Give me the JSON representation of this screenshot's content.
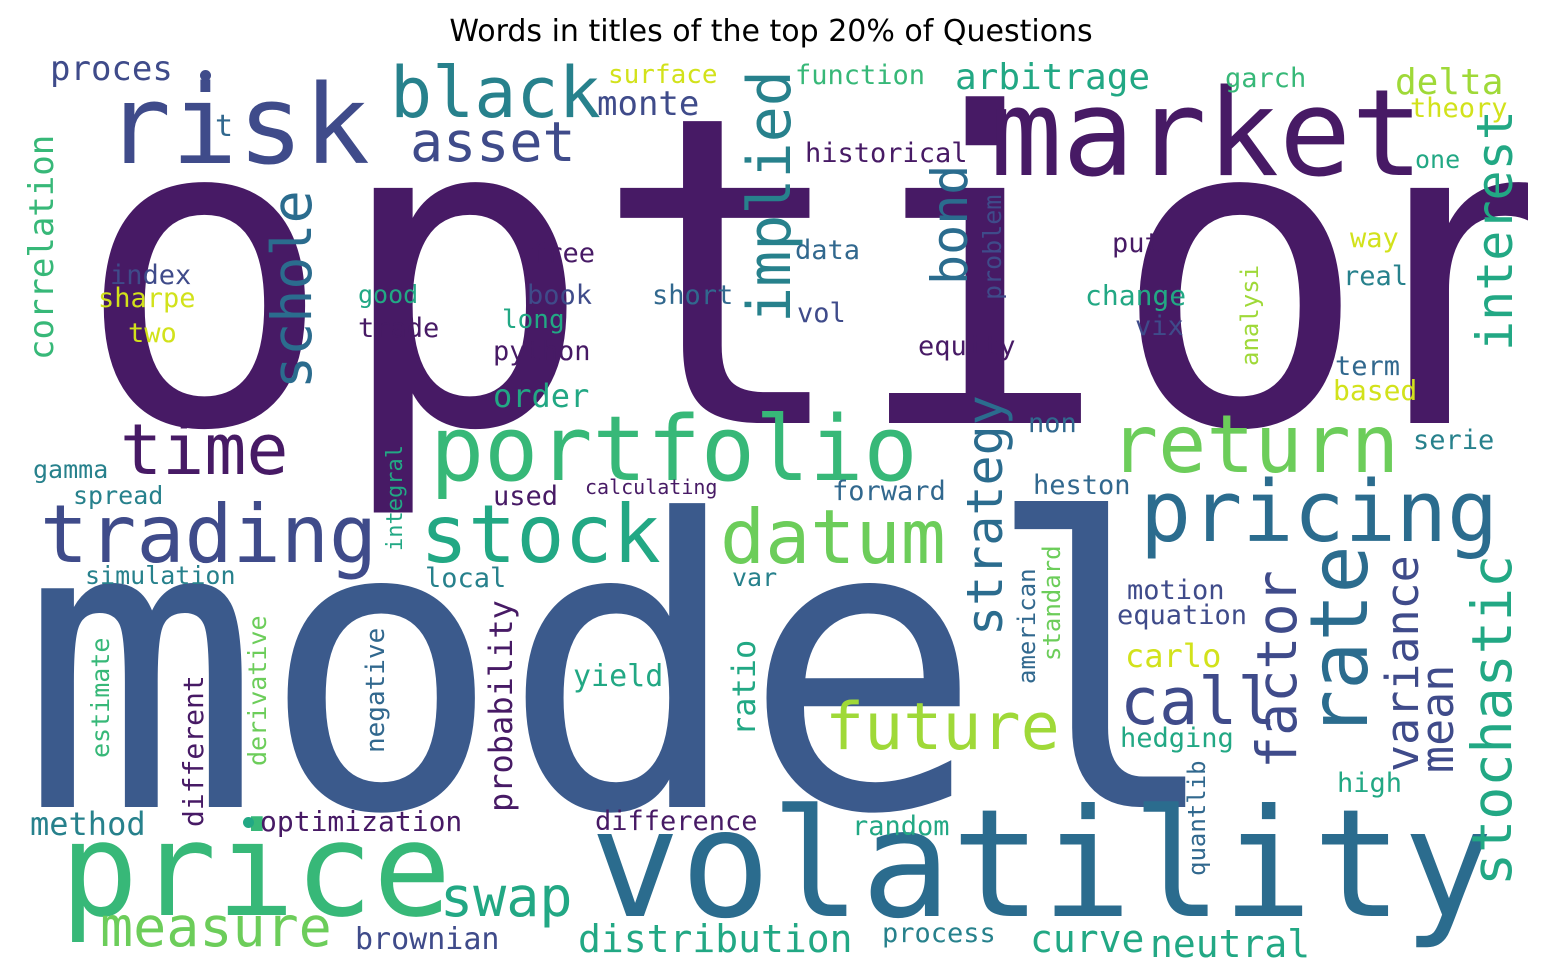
{
  "title": "Words in titles of the top 20% of Questions",
  "palette": {
    "purple": "#471a65",
    "indigo": "#3f4b8a",
    "navy": "#3b5a8c",
    "teal": "#2b6c8e",
    "blue": "#31688e",
    "cyan": "#27818c",
    "sea": "#22a884",
    "green": "#37b878",
    "lime": "#6ccd5a",
    "chartreuse": "#9fd938",
    "yellow": "#d2e21b"
  },
  "words": [
    {
      "text": "option",
      "color": "purple"
    },
    {
      "text": "model",
      "color": "navy"
    },
    {
      "text": "volatility",
      "color": "teal"
    },
    {
      "text": "price",
      "color": "green"
    },
    {
      "text": "risk",
      "color": "indigo"
    },
    {
      "text": "market",
      "color": "purple"
    },
    {
      "text": "portfolio",
      "color": "green"
    },
    {
      "text": "return",
      "color": "lime"
    },
    {
      "text": "pricing",
      "color": "teal"
    },
    {
      "text": "trading",
      "color": "indigo"
    },
    {
      "text": "time",
      "color": "purple"
    },
    {
      "text": "stock",
      "color": "sea"
    },
    {
      "text": "datum",
      "color": "lime"
    },
    {
      "text": "black",
      "color": "cyan"
    },
    {
      "text": "asset",
      "color": "indigo"
    },
    {
      "text": "implied",
      "color": "cyan"
    },
    {
      "text": "schole",
      "color": "teal"
    },
    {
      "text": "bond",
      "color": "teal"
    },
    {
      "text": "interest",
      "color": "sea"
    },
    {
      "text": "rate",
      "color": "teal"
    },
    {
      "text": "future",
      "color": "chartreuse"
    },
    {
      "text": "call",
      "color": "indigo"
    },
    {
      "text": "factor",
      "color": "indigo"
    },
    {
      "text": "strategy",
      "color": "teal"
    },
    {
      "text": "stochastic",
      "color": "sea"
    },
    {
      "text": "variance",
      "color": "indigo"
    },
    {
      "text": "mean",
      "color": "indigo"
    },
    {
      "text": "swap",
      "color": "sea"
    },
    {
      "text": "measure",
      "color": "lime"
    },
    {
      "text": "arbitrage",
      "color": "sea"
    },
    {
      "text": "delta",
      "color": "chartreuse"
    },
    {
      "text": "monte",
      "color": "indigo"
    },
    {
      "text": "proces",
      "color": "indigo"
    },
    {
      "text": "correlation",
      "color": "green"
    },
    {
      "text": "probability",
      "color": "purple"
    },
    {
      "text": "distribution",
      "color": "sea"
    },
    {
      "text": "curve",
      "color": "sea"
    },
    {
      "text": "neutral",
      "color": "sea"
    },
    {
      "text": "brownian",
      "color": "indigo"
    },
    {
      "text": "method",
      "color": "cyan"
    },
    {
      "text": "carlo",
      "color": "yellow"
    },
    {
      "text": "ratio",
      "color": "sea"
    },
    {
      "text": "order",
      "color": "sea"
    },
    {
      "text": "function",
      "color": "green"
    },
    {
      "text": "surface",
      "color": "yellow"
    },
    {
      "text": "garch",
      "color": "green"
    },
    {
      "text": "theory",
      "color": "yellow"
    },
    {
      "text": "historical",
      "color": "purple"
    },
    {
      "text": "one",
      "color": "sea"
    },
    {
      "text": "t",
      "color": "blue"
    },
    {
      "text": "index",
      "color": "indigo"
    },
    {
      "text": "sharpe",
      "color": "yellow"
    },
    {
      "text": "two",
      "color": "yellow"
    },
    {
      "text": "good",
      "color": "sea"
    },
    {
      "text": "trade",
      "color": "purple"
    },
    {
      "text": "free",
      "color": "purple"
    },
    {
      "text": "book",
      "color": "indigo"
    },
    {
      "text": "long",
      "color": "sea"
    },
    {
      "text": "python",
      "color": "purple"
    },
    {
      "text": "short",
      "color": "blue"
    },
    {
      "text": "data",
      "color": "blue"
    },
    {
      "text": "vol",
      "color": "indigo"
    },
    {
      "text": "problem",
      "color": "indigo"
    },
    {
      "text": "equity",
      "color": "purple"
    },
    {
      "text": "put",
      "color": "purple"
    },
    {
      "text": "change",
      "color": "sea"
    },
    {
      "text": "vix",
      "color": "indigo"
    },
    {
      "text": "way",
      "color": "yellow"
    },
    {
      "text": "real",
      "color": "cyan"
    },
    {
      "text": "analysi",
      "color": "chartreuse"
    },
    {
      "text": "term",
      "color": "blue"
    },
    {
      "text": "based",
      "color": "yellow"
    },
    {
      "text": "serie",
      "color": "cyan"
    },
    {
      "text": "non",
      "color": "blue"
    },
    {
      "text": "heston",
      "color": "blue"
    },
    {
      "text": "gamma",
      "color": "cyan"
    },
    {
      "text": "spread",
      "color": "cyan"
    },
    {
      "text": "used",
      "color": "purple"
    },
    {
      "text": "calculating",
      "color": "purple"
    },
    {
      "text": "forward",
      "color": "blue"
    },
    {
      "text": "integral",
      "color": "sea"
    },
    {
      "text": "simulation",
      "color": "cyan"
    },
    {
      "text": "local",
      "color": "cyan"
    },
    {
      "text": "var",
      "color": "cyan"
    },
    {
      "text": "american",
      "color": "blue"
    },
    {
      "text": "standard",
      "color": "lime"
    },
    {
      "text": "motion",
      "color": "indigo"
    },
    {
      "text": "equation",
      "color": "indigo"
    },
    {
      "text": "yield",
      "color": "sea"
    },
    {
      "text": "hedging",
      "color": "sea"
    },
    {
      "text": "high",
      "color": "sea"
    },
    {
      "text": "quantlib",
      "color": "blue"
    },
    {
      "text": "estimate",
      "color": "green"
    },
    {
      "text": "different",
      "color": "purple"
    },
    {
      "text": "derivative",
      "color": "lime"
    },
    {
      "text": "negative",
      "color": "blue"
    },
    {
      "text": "optimization",
      "color": "purple"
    },
    {
      "text": "difference",
      "color": "purple"
    },
    {
      "text": "random",
      "color": "sea"
    },
    {
      "text": "process",
      "color": "cyan"
    }
  ]
}
